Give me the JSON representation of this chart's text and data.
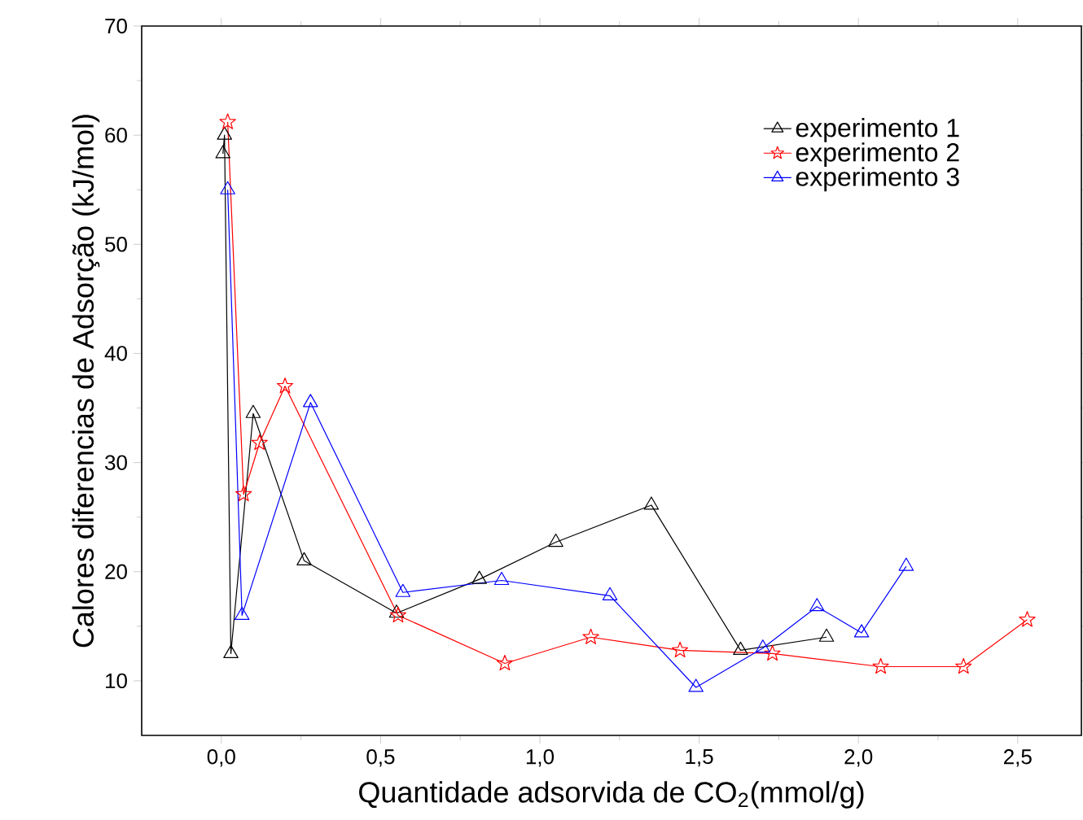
{
  "chart_data": {
    "type": "line",
    "xlabel": "Quantidade adsorvida de CO$_{2}$(mmol/g)",
    "ylabel": "Calores diferencias de Adsorção (kJ/mol)",
    "xlim": [
      -0.25,
      2.7
    ],
    "ylim": [
      5,
      70
    ],
    "xticks": [
      {
        "value": 0,
        "label": "0,0"
      },
      {
        "value": 0.5,
        "label": "0,5"
      },
      {
        "value": 1,
        "label": "1,0"
      },
      {
        "value": 1.5,
        "label": "1,5"
      },
      {
        "value": 2,
        "label": "2,0"
      },
      {
        "value": 2.5,
        "label": "2,5"
      }
    ],
    "yticks": [
      10,
      20,
      30,
      40,
      50,
      60,
      70
    ],
    "legend": "top right",
    "line_style": "solid",
    "series": [
      {
        "name": "experimento 1",
        "color": "#000000",
        "marker": "triangle",
        "x": [
          0.005,
          0.01,
          0.03,
          0.1,
          0.26,
          0.55,
          0.81,
          1.05,
          1.35,
          1.63,
          1.9
        ],
        "values": [
          58.3,
          60.0,
          12.5,
          34.5,
          21.0,
          16.2,
          19.3,
          22.7,
          26.1,
          12.8,
          14.0
        ]
      },
      {
        "name": "experimento 2",
        "color": "#ff0000",
        "marker": "star",
        "x": [
          0.02,
          0.07,
          0.12,
          0.2,
          0.555,
          0.89,
          1.16,
          1.44,
          1.73,
          2.07,
          2.33,
          2.53
        ],
        "values": [
          61.2,
          27.1,
          31.8,
          37.0,
          16.0,
          11.6,
          14.0,
          12.8,
          12.5,
          11.3,
          11.3,
          15.6
        ]
      },
      {
        "name": "experimento 3",
        "color": "#0000ff",
        "marker": "triangle",
        "x": [
          0.02,
          0.065,
          0.28,
          0.57,
          0.88,
          1.22,
          1.49,
          1.7,
          1.87,
          2.01,
          2.15
        ],
        "values": [
          55.0,
          16.0,
          35.5,
          18.1,
          19.2,
          17.8,
          9.4,
          13.0,
          16.8,
          14.4,
          20.5
        ]
      }
    ]
  }
}
